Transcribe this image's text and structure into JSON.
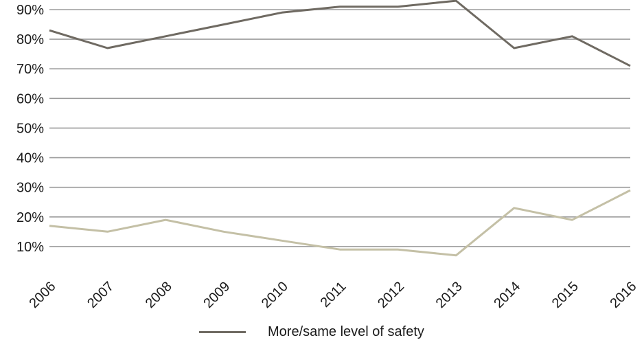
{
  "chart_data": {
    "type": "line",
    "categories": [
      "2006",
      "2007",
      "2008",
      "2009",
      "2010",
      "2011",
      "2012",
      "2013",
      "2014",
      "2015",
      "2016"
    ],
    "yticks": [
      10,
      20,
      30,
      40,
      50,
      60,
      70,
      80,
      90
    ],
    "ytick_labels": [
      "10%",
      "20%",
      "30%",
      "40%",
      "50%",
      "60%",
      "70%",
      "80%",
      "90%"
    ],
    "ylim": [
      0,
      92
    ],
    "grid": true,
    "series": [
      {
        "name": "More/same level of safety",
        "color": "#6f6a62",
        "values": [
          83,
          77,
          81,
          85,
          89,
          91,
          91,
          93,
          77,
          81,
          71
        ]
      },
      {
        "color": "#c4c0a6",
        "values": [
          17,
          15,
          19,
          15,
          12,
          9,
          9,
          7,
          23,
          19,
          29
        ]
      }
    ],
    "legend_position": "bottom"
  }
}
